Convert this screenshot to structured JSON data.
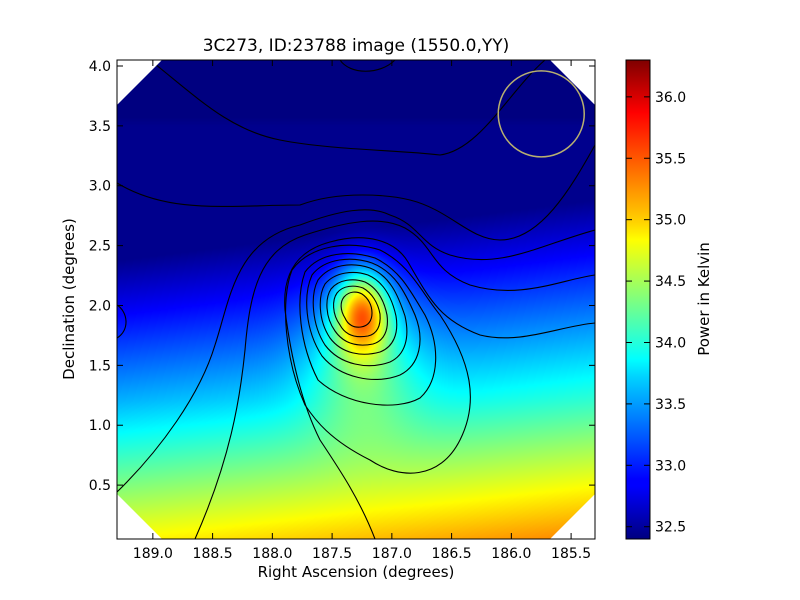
{
  "chart_data": {
    "type": "heatmap",
    "title": "3C273, ID:23788 image (1550.0,YY)",
    "xlabel": "Right Ascension (degrees)",
    "ylabel": "Declination (degrees)",
    "xlim": [
      189.3,
      185.3
    ],
    "ylim": [
      0.05,
      4.05
    ],
    "x_ticks": [
      "189.0",
      "188.5",
      "188.0",
      "187.5",
      "187.0",
      "186.5",
      "186.0",
      "185.5"
    ],
    "x_tick_values": [
      189.0,
      188.5,
      188.0,
      187.5,
      187.0,
      186.5,
      186.0,
      185.5
    ],
    "y_ticks": [
      "0.5",
      "1.0",
      "1.5",
      "2.0",
      "2.5",
      "3.0",
      "3.5",
      "4.0"
    ],
    "y_tick_values": [
      0.5,
      1.0,
      1.5,
      2.0,
      2.5,
      3.0,
      3.5,
      4.0
    ],
    "colormap": "jet",
    "colorbar": {
      "label": "Power in Kelvin",
      "range": [
        32.4,
        36.3
      ],
      "ticks": [
        "32.5",
        "33.0",
        "33.5",
        "34.0",
        "34.5",
        "35.0",
        "35.5",
        "36.0"
      ],
      "tick_values": [
        32.5,
        33.0,
        33.5,
        34.0,
        34.5,
        35.0,
        35.5,
        36.0
      ]
    },
    "peak": {
      "ra": 187.25,
      "dec": 1.95,
      "value": 36.25
    },
    "beam_circle": {
      "ra": 185.75,
      "dec": 3.6,
      "color": "#b8b070"
    },
    "contours": true,
    "grid": false
  }
}
